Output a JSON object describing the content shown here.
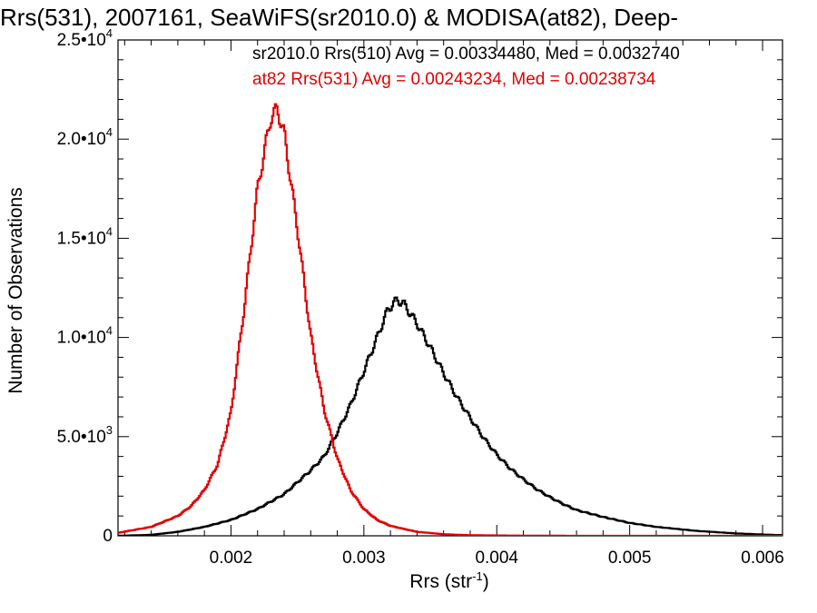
{
  "title": "Rrs(531), 2007161, SeaWiFS(sr2010.0) & MODISA(at82), Deep-",
  "legend": {
    "line1": "sr2010.0 Rrs(510) Avg = 0.00334480, Med = 0.0032740",
    "line2": "at82 Rrs(531) Avg = 0.00243234, Med = 0.00238734"
  },
  "colors": {
    "series1": "#000000",
    "series2": "#e10000"
  },
  "chart_data": {
    "type": "line",
    "xlabel_main": "Rrs (str",
    "xlabel_sup": "-1",
    "xlabel_close": ")",
    "ylabel": "Number of Observations",
    "xlim": [
      0.00115,
      0.00615
    ],
    "ylim": [
      0,
      25000
    ],
    "x_ticks": [
      {
        "value": 0.002,
        "label": "0.002"
      },
      {
        "value": 0.003,
        "label": "0.003"
      },
      {
        "value": 0.004,
        "label": "0.004"
      },
      {
        "value": 0.005,
        "label": "0.005"
      },
      {
        "value": 0.006,
        "label": "0.006"
      }
    ],
    "y_ticks": [
      {
        "value": 0,
        "mant": "0",
        "exp": ""
      },
      {
        "value": 5000,
        "mant": "5.0•10",
        "exp": "3"
      },
      {
        "value": 10000,
        "mant": "1.0•10",
        "exp": "4"
      },
      {
        "value": 15000,
        "mant": "1.5•10",
        "exp": "4"
      },
      {
        "value": 20000,
        "mant": "2.0•10",
        "exp": "4"
      },
      {
        "value": 25000,
        "mant": "2.5•10",
        "exp": "4"
      }
    ],
    "series": [
      {
        "name": "sr2010.0 Rrs(510)",
        "color": "#000000",
        "x": [
          0.00115,
          0.0014,
          0.0016,
          0.0018,
          0.002,
          0.0022,
          0.0024,
          0.0026,
          0.0027,
          0.0028,
          0.0029,
          0.003,
          0.0031,
          0.00318,
          0.00325,
          0.0033,
          0.0034,
          0.0035,
          0.0036,
          0.0037,
          0.0038,
          0.0039,
          0.004,
          0.0041,
          0.0042,
          0.0043,
          0.0044,
          0.0045,
          0.0046,
          0.0048,
          0.005,
          0.0052,
          0.0055,
          0.0058,
          0.0061
        ],
        "y": [
          0,
          50,
          200,
          450,
          800,
          1350,
          2100,
          3300,
          4000,
          5200,
          6600,
          8300,
          10000,
          11400,
          11900,
          11700,
          10700,
          9500,
          8200,
          7000,
          5950,
          4950,
          4100,
          3400,
          2850,
          2350,
          1950,
          1600,
          1300,
          950,
          650,
          450,
          250,
          120,
          40
        ]
      },
      {
        "name": "at82 Rrs(531)",
        "color": "#e10000",
        "x": [
          0.00115,
          0.0014,
          0.0016,
          0.0017,
          0.0018,
          0.0019,
          0.002,
          0.0021,
          0.0022,
          0.0023,
          0.00235,
          0.0024,
          0.0025,
          0.0026,
          0.0027,
          0.0028,
          0.0029,
          0.003,
          0.0031,
          0.0032,
          0.0034,
          0.0036,
          0.0038,
          0.0042,
          0.0046,
          0.0061
        ],
        "y": [
          150,
          450,
          1000,
          1500,
          2300,
          3600,
          6200,
          11500,
          17500,
          21100,
          21500,
          20300,
          15500,
          10100,
          6400,
          3900,
          2300,
          1350,
          800,
          500,
          200,
          80,
          30,
          10,
          0,
          0
        ]
      }
    ]
  }
}
